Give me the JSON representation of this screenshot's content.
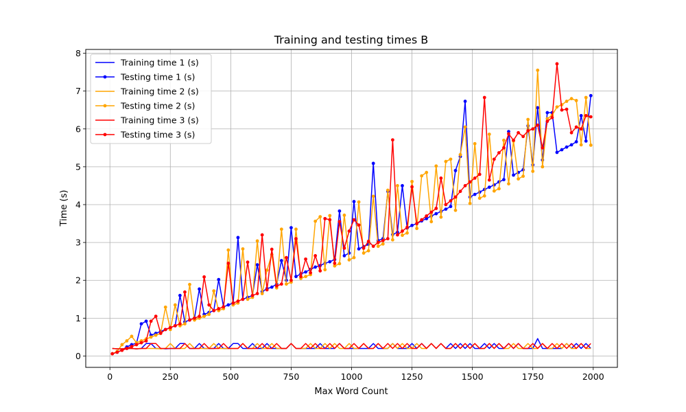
{
  "chart_data": {
    "type": "line",
    "title": "Training and testing times B",
    "xlabel": "Max Word Count",
    "ylabel": "Time (s)",
    "xlim": [
      -100,
      2100
    ],
    "ylim": [
      -0.3,
      8.1
    ],
    "xticks": [
      0,
      250,
      500,
      750,
      1000,
      1250,
      1500,
      1750,
      2000
    ],
    "yticks": [
      0,
      1,
      2,
      3,
      4,
      5,
      6,
      7,
      8
    ],
    "grid": true,
    "legend_position": "top-left",
    "x": [
      10,
      30,
      50,
      70,
      90,
      110,
      130,
      150,
      170,
      190,
      210,
      230,
      250,
      270,
      290,
      310,
      330,
      350,
      370,
      390,
      410,
      430,
      450,
      470,
      490,
      510,
      530,
      550,
      570,
      590,
      610,
      630,
      650,
      670,
      690,
      710,
      730,
      750,
      770,
      790,
      810,
      830,
      850,
      870,
      890,
      910,
      930,
      950,
      970,
      990,
      1010,
      1030,
      1050,
      1070,
      1090,
      1110,
      1130,
      1150,
      1170,
      1190,
      1210,
      1230,
      1250,
      1270,
      1290,
      1310,
      1330,
      1350,
      1370,
      1390,
      1410,
      1430,
      1450,
      1470,
      1490,
      1510,
      1530,
      1550,
      1570,
      1590,
      1610,
      1630,
      1650,
      1670,
      1690,
      1710,
      1730,
      1750,
      1770,
      1790,
      1810,
      1830,
      1850,
      1870,
      1890,
      1910,
      1930,
      1950,
      1970,
      1990
    ],
    "series": [
      {
        "name": "Training time 1 (s)",
        "color": "#0000ff",
        "marker": false,
        "values": [
          0.2,
          0.19,
          0.19,
          0.2,
          0.2,
          0.19,
          0.2,
          0.33,
          0.33,
          0.2,
          0.2,
          0.19,
          0.2,
          0.2,
          0.33,
          0.33,
          0.2,
          0.2,
          0.33,
          0.2,
          0.2,
          0.2,
          0.33,
          0.2,
          0.2,
          0.33,
          0.33,
          0.2,
          0.2,
          0.33,
          0.2,
          0.2,
          0.33,
          0.2,
          0.2,
          0.2,
          0.2,
          0.33,
          0.2,
          0.2,
          0.2,
          0.2,
          0.2,
          0.33,
          0.2,
          0.2,
          0.2,
          0.33,
          0.2,
          0.2,
          0.2,
          0.2,
          0.2,
          0.2,
          0.33,
          0.2,
          0.2,
          0.2,
          0.33,
          0.2,
          0.2,
          0.2,
          0.33,
          0.2,
          0.33,
          0.2,
          0.33,
          0.2,
          0.33,
          0.2,
          0.33,
          0.2,
          0.33,
          0.2,
          0.33,
          0.2,
          0.2,
          0.33,
          0.2,
          0.33,
          0.2,
          0.2,
          0.33,
          0.2,
          0.33,
          0.2,
          0.2,
          0.2,
          0.46,
          0.2,
          0.2,
          0.2,
          0.2,
          0.2,
          0.33,
          0.2,
          0.33,
          0.2,
          0.33,
          0.2
        ]
      },
      {
        "name": "Testing time 1 (s)",
        "color": "#0000ff",
        "marker": true,
        "values": [
          0.06,
          0.1,
          0.16,
          0.24,
          0.3,
          0.34,
          0.85,
          0.92,
          0.55,
          0.6,
          0.65,
          0.7,
          0.75,
          0.8,
          1.6,
          0.9,
          0.95,
          1.0,
          1.77,
          1.1,
          1.15,
          1.2,
          2.02,
          1.3,
          1.35,
          1.4,
          3.13,
          1.5,
          1.55,
          1.6,
          2.41,
          1.7,
          1.78,
          1.82,
          1.9,
          2.52,
          2.0,
          3.39,
          2.1,
          2.17,
          2.22,
          2.29,
          2.35,
          2.39,
          2.45,
          2.49,
          2.55,
          3.83,
          2.65,
          2.72,
          4.08,
          2.83,
          2.89,
          2.95,
          5.09,
          3.05,
          3.1,
          4.35,
          3.21,
          3.27,
          4.5,
          3.38,
          3.45,
          3.5,
          3.57,
          3.63,
          3.7,
          3.76,
          3.82,
          3.88,
          3.95,
          4.9,
          5.27,
          6.73,
          4.2,
          4.27,
          4.33,
          4.4,
          4.46,
          4.52,
          4.6,
          4.66,
          5.93,
          4.78,
          4.85,
          4.92,
          6.08,
          5.05,
          6.56,
          5.18,
          6.43,
          6.43,
          5.38,
          5.45,
          5.52,
          5.58,
          5.66,
          6.35,
          5.68,
          6.88
        ]
      },
      {
        "name": "Training time 2 (s)",
        "color": "#ffa500",
        "marker": false,
        "values": [
          0.2,
          0.19,
          0.19,
          0.2,
          0.2,
          0.19,
          0.2,
          0.2,
          0.2,
          0.2,
          0.19,
          0.2,
          0.33,
          0.2,
          0.2,
          0.2,
          0.33,
          0.2,
          0.2,
          0.2,
          0.2,
          0.33,
          0.2,
          0.2,
          0.2,
          0.2,
          0.2,
          0.33,
          0.2,
          0.2,
          0.33,
          0.2,
          0.2,
          0.33,
          0.2,
          0.2,
          0.2,
          0.33,
          0.2,
          0.2,
          0.2,
          0.33,
          0.2,
          0.2,
          0.33,
          0.2,
          0.33,
          0.2,
          0.2,
          0.33,
          0.2,
          0.2,
          0.33,
          0.2,
          0.2,
          0.33,
          0.2,
          0.2,
          0.33,
          0.2,
          0.33,
          0.2,
          0.2,
          0.33,
          0.2,
          0.2,
          0.33,
          0.2,
          0.33,
          0.2,
          0.2,
          0.33,
          0.2,
          0.33,
          0.2,
          0.33,
          0.2,
          0.2,
          0.33,
          0.2,
          0.33,
          0.2,
          0.2,
          0.33,
          0.2,
          0.2,
          0.33,
          0.2,
          0.2,
          0.33,
          0.2,
          0.2,
          0.33,
          0.2,
          0.33,
          0.2,
          0.2,
          0.33,
          0.2,
          0.2
        ]
      },
      {
        "name": "Testing time 2 (s)",
        "color": "#ffa500",
        "marker": true,
        "values": [
          0.06,
          0.12,
          0.3,
          0.4,
          0.52,
          0.35,
          0.4,
          0.45,
          0.5,
          0.55,
          0.6,
          1.29,
          0.7,
          1.35,
          0.8,
          0.85,
          1.89,
          0.95,
          1.0,
          1.05,
          1.1,
          1.72,
          1.2,
          1.25,
          2.8,
          1.35,
          1.4,
          2.83,
          1.5,
          1.55,
          3.04,
          1.65,
          2.27,
          2.68,
          1.8,
          3.35,
          1.9,
          1.95,
          3.35,
          2.05,
          2.1,
          2.15,
          3.56,
          3.68,
          2.28,
          3.71,
          2.38,
          2.44,
          3.72,
          2.54,
          2.6,
          4.07,
          2.72,
          2.78,
          4.22,
          2.9,
          2.96,
          4.38,
          3.07,
          4.5,
          3.19,
          3.25,
          4.61,
          3.37,
          4.76,
          4.85,
          3.55,
          5.02,
          3.67,
          5.14,
          5.2,
          3.85,
          5.32,
          6.05,
          4.03,
          5.61,
          4.17,
          4.23,
          5.86,
          4.36,
          4.42,
          5.7,
          4.55,
          5.68,
          4.68,
          4.75,
          6.25,
          4.88,
          7.55,
          5.0,
          6.27,
          6.36,
          6.58,
          6.64,
          6.73,
          6.8,
          6.75,
          5.58,
          6.83,
          5.57
        ]
      },
      {
        "name": "Training time 3 (s)",
        "color": "#ff0000",
        "marker": false,
        "values": [
          0.2,
          0.19,
          0.19,
          0.2,
          0.2,
          0.19,
          0.2,
          0.2,
          0.33,
          0.33,
          0.2,
          0.2,
          0.2,
          0.2,
          0.2,
          0.33,
          0.2,
          0.2,
          0.2,
          0.33,
          0.2,
          0.2,
          0.2,
          0.33,
          0.2,
          0.2,
          0.2,
          0.33,
          0.2,
          0.2,
          0.2,
          0.33,
          0.2,
          0.2,
          0.33,
          0.2,
          0.2,
          0.33,
          0.2,
          0.2,
          0.33,
          0.2,
          0.33,
          0.2,
          0.2,
          0.33,
          0.2,
          0.33,
          0.2,
          0.2,
          0.33,
          0.2,
          0.33,
          0.2,
          0.2,
          0.33,
          0.2,
          0.33,
          0.2,
          0.33,
          0.2,
          0.33,
          0.2,
          0.2,
          0.33,
          0.2,
          0.33,
          0.2,
          0.33,
          0.2,
          0.2,
          0.33,
          0.2,
          0.33,
          0.2,
          0.33,
          0.2,
          0.2,
          0.33,
          0.2,
          0.33,
          0.2,
          0.33,
          0.2,
          0.33,
          0.2,
          0.2,
          0.33,
          0.2,
          0.33,
          0.2,
          0.33,
          0.2,
          0.33,
          0.2,
          0.33,
          0.2,
          0.33,
          0.2,
          0.33
        ]
      },
      {
        "name": "Testing time 3 (s)",
        "color": "#ff0000",
        "marker": true,
        "values": [
          0.06,
          0.1,
          0.15,
          0.2,
          0.25,
          0.3,
          0.35,
          0.4,
          0.92,
          1.05,
          0.6,
          0.7,
          0.75,
          0.8,
          0.85,
          1.69,
          0.95,
          1.0,
          1.05,
          2.09,
          1.35,
          1.2,
          1.25,
          1.3,
          2.45,
          1.4,
          1.45,
          1.5,
          2.48,
          1.6,
          1.65,
          3.2,
          1.75,
          2.82,
          1.85,
          1.9,
          2.6,
          2.0,
          3.1,
          2.1,
          2.56,
          2.2,
          2.65,
          2.25,
          3.63,
          3.6,
          2.45,
          3.55,
          2.85,
          3.3,
          3.6,
          3.46,
          2.85,
          3.03,
          2.9,
          3.0,
          3.05,
          3.1,
          5.71,
          3.2,
          3.3,
          3.4,
          4.47,
          3.5,
          3.6,
          3.7,
          3.8,
          3.9,
          4.7,
          4.0,
          4.1,
          4.2,
          4.35,
          4.5,
          4.6,
          4.7,
          4.8,
          6.83,
          4.65,
          5.2,
          5.37,
          5.5,
          5.87,
          5.7,
          5.9,
          5.8,
          5.95,
          6.0,
          6.1,
          5.5,
          6.2,
          6.3,
          7.72,
          6.5,
          6.52,
          5.9,
          6.05,
          6.0,
          6.35,
          6.32
        ]
      }
    ]
  }
}
